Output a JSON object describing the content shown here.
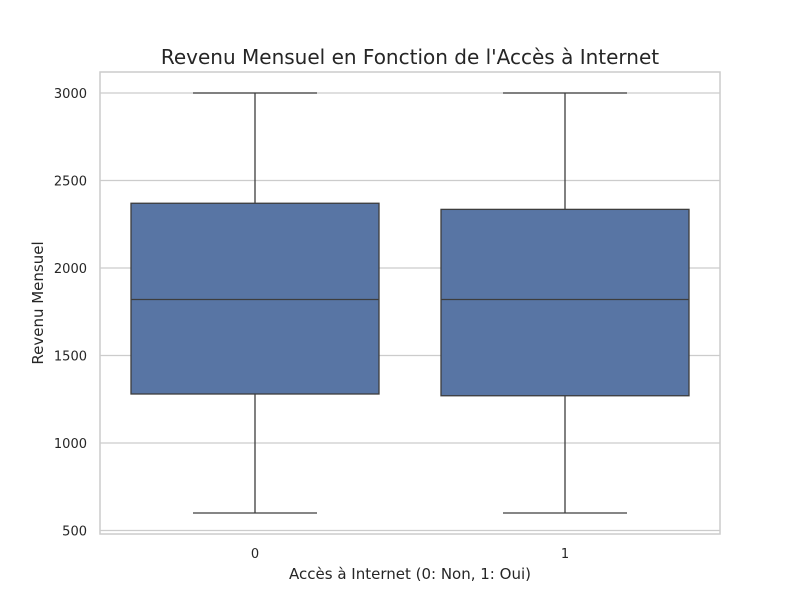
{
  "chart_data": {
    "type": "box",
    "title": "Revenu Mensuel en Fonction de l'Accès à Internet",
    "xlabel": "Accès à Internet (0: Non, 1: Oui)",
    "ylabel": "Revenu Mensuel",
    "categories": [
      "0",
      "1"
    ],
    "ylim": [
      480,
      3120
    ],
    "yticks": [
      500,
      1000,
      1500,
      2000,
      2500,
      3000
    ],
    "grid": true,
    "box_color": "#5875a4",
    "line_color": "#3d3d3d",
    "boxes": [
      {
        "category": "0",
        "min": 600,
        "q1": 1280,
        "median": 1820,
        "q3": 2370,
        "max": 3000
      },
      {
        "category": "1",
        "min": 600,
        "q1": 1270,
        "median": 1820,
        "q3": 2335,
        "max": 3000
      }
    ]
  }
}
